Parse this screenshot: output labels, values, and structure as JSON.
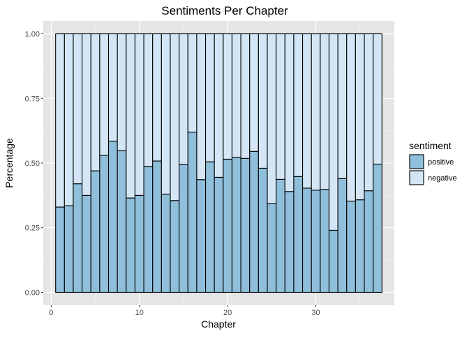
{
  "chart_data": {
    "type": "bar",
    "stacked": true,
    "title": "Sentiments Per Chapter",
    "xlabel": "Chapter",
    "ylabel": "Percentage",
    "xlim": [
      -0.9,
      38.9
    ],
    "ylim": [
      -0.05,
      1.05
    ],
    "x_ticks": [
      0,
      10,
      20,
      30
    ],
    "x_tick_labels": [
      "0",
      "10",
      "20",
      "30"
    ],
    "y_ticks": [
      0,
      0.25,
      0.5,
      0.75,
      1.0
    ],
    "y_tick_labels": [
      "0.00",
      "0.25",
      "0.50",
      "0.75",
      "1.00"
    ],
    "grid": true,
    "legend": {
      "title": "sentiment",
      "position": "right",
      "entries": [
        "positive",
        "negative"
      ]
    },
    "categories": [
      1,
      2,
      3,
      4,
      5,
      6,
      7,
      8,
      9,
      10,
      11,
      12,
      13,
      14,
      15,
      16,
      17,
      18,
      19,
      20,
      21,
      22,
      23,
      24,
      25,
      26,
      27,
      28,
      29,
      30,
      31,
      32,
      33,
      34,
      35,
      36,
      37
    ],
    "series": [
      {
        "name": "positive",
        "color": "#8fbfda",
        "values": [
          0.33,
          0.335,
          0.42,
          0.375,
          0.47,
          0.53,
          0.585,
          0.548,
          0.365,
          0.375,
          0.487,
          0.508,
          0.38,
          0.355,
          0.494,
          0.62,
          0.436,
          0.505,
          0.445,
          0.515,
          0.522,
          0.518,
          0.545,
          0.48,
          0.343,
          0.437,
          0.39,
          0.448,
          0.403,
          0.395,
          0.398,
          0.24,
          0.44,
          0.353,
          0.358,
          0.393,
          0.496
        ]
      },
      {
        "name": "negative",
        "color": "#d4e6f5",
        "values": [
          0.67,
          0.665,
          0.58,
          0.625,
          0.53,
          0.47,
          0.415,
          0.452,
          0.635,
          0.625,
          0.513,
          0.492,
          0.62,
          0.645,
          0.506,
          0.38,
          0.564,
          0.495,
          0.555,
          0.485,
          0.478,
          0.482,
          0.455,
          0.52,
          0.657,
          0.563,
          0.61,
          0.552,
          0.597,
          0.605,
          0.602,
          0.76,
          0.56,
          0.647,
          0.642,
          0.607,
          0.504
        ]
      }
    ]
  }
}
